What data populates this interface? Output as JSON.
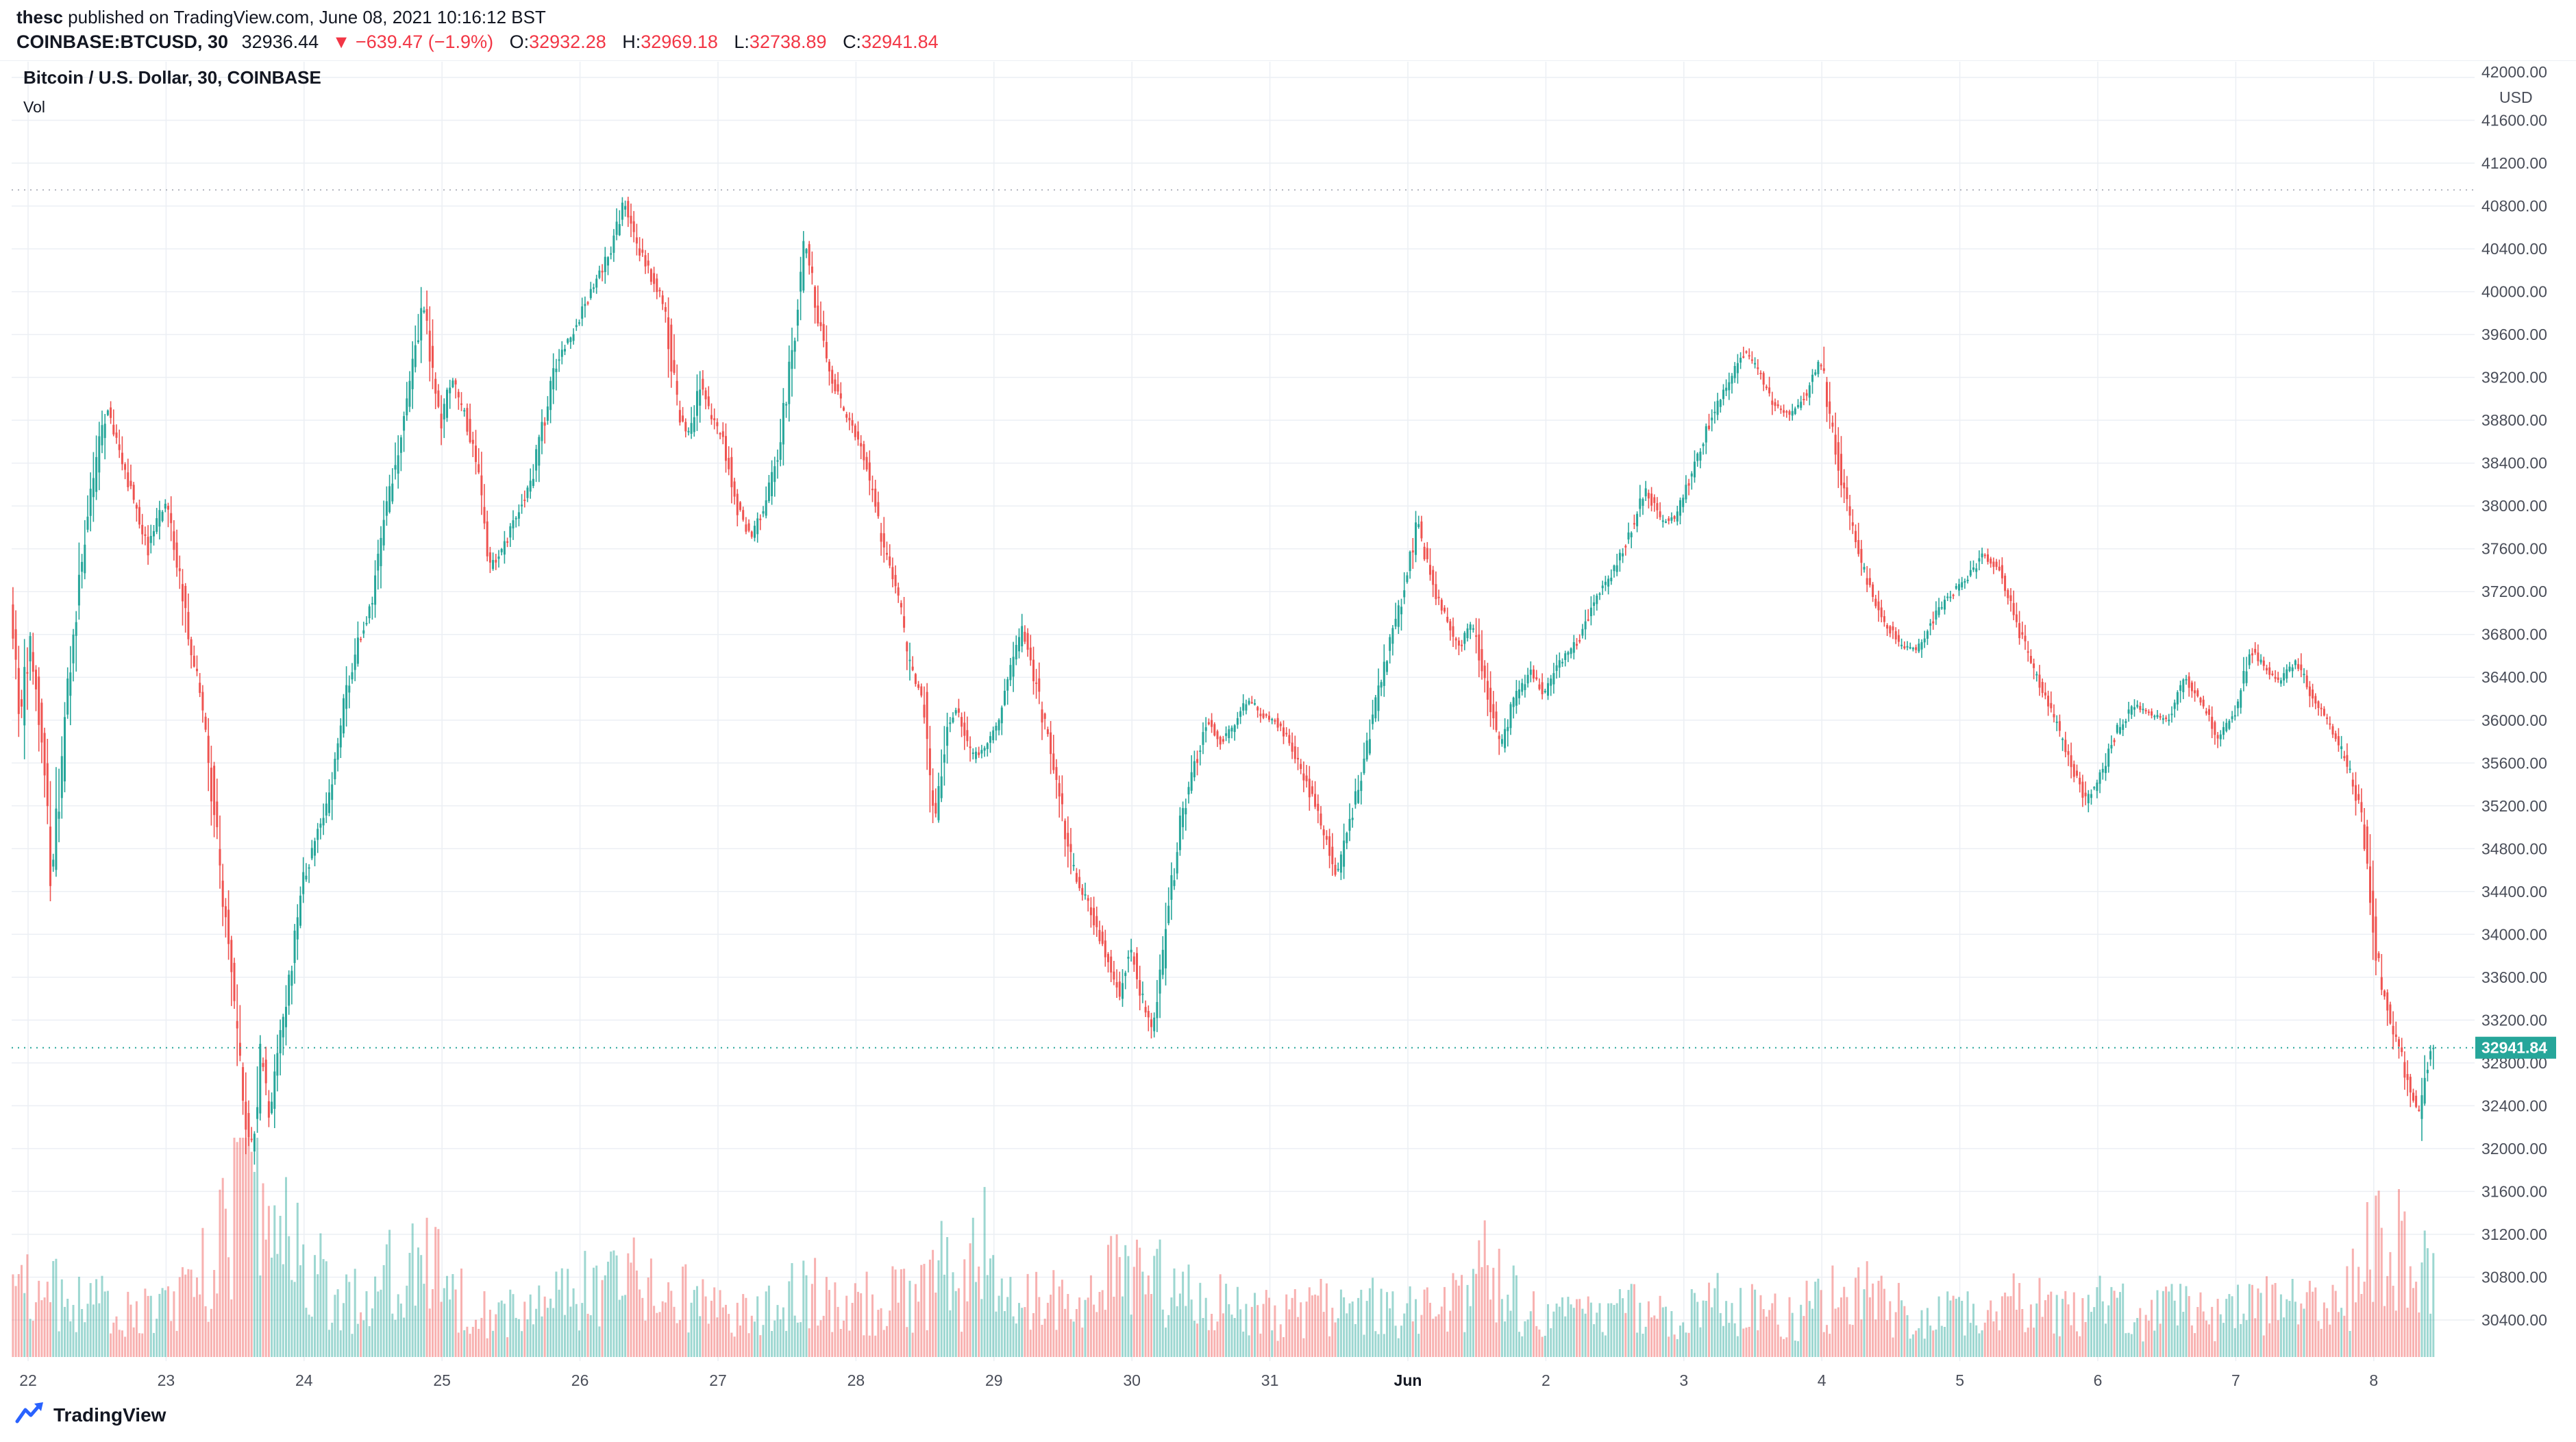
{
  "header": {
    "author": "thesc",
    "published": " published on TradingView.com, June 08, 2021 10:16:12 BST",
    "symbol_title": "COINBASE:BTCUSD, 30",
    "last": "32936.44",
    "change": "▼ −639.47 (−1.9%)",
    "o_label": "O:",
    "o_value": "32932.28",
    "h_label": "H:",
    "h_value": "32969.18",
    "l_label": "L:",
    "l_value": "32738.89",
    "c_label": "C:",
    "c_value": "32941.84"
  },
  "legend": {
    "title": "Bitcoin / U.S. Dollar, 30, COINBASE",
    "vol_label": "Vol"
  },
  "footer": {
    "brand": "TradingView"
  },
  "chart_data": {
    "type": "candlestick",
    "symbol": "COINBASE:BTCUSD",
    "interval_minutes": 30,
    "title": "Bitcoin / U.S. Dollar, 30, COINBASE",
    "y_axis": {
      "min": 30400,
      "max": 42000,
      "step": 400,
      "decimals": 2,
      "currency": "USD"
    },
    "x_axis": {
      "labels": [
        "22",
        "23",
        "24",
        "25",
        "26",
        "27",
        "28",
        "29",
        "30",
        "31",
        "Jun",
        "2",
        "3",
        "4",
        "5",
        "6",
        "7",
        "8"
      ],
      "bold_index": 10
    },
    "grid": true,
    "legend_position": "top-left",
    "colors": {
      "up": "#26a69a",
      "down": "#ef5350",
      "vol_up": "rgba(38,166,154,0.45)",
      "vol_down": "rgba(239,83,80,0.45)",
      "grid": "#eceff4",
      "axis_text": "#4a4e59",
      "price_label_bg": "#26a69a"
    },
    "last_price_label": "32941.84",
    "price_line": 32941.84,
    "high_dotted_line": 40950,
    "last_bar": {
      "o": 32932.28,
      "h": 32969.18,
      "l": 32738.89,
      "c": 32941.84
    },
    "price_path": [
      [
        -0.12,
        37000
      ],
      [
        -0.04,
        36000
      ],
      [
        0.02,
        36800
      ],
      [
        0.1,
        35900
      ],
      [
        0.18,
        34500
      ],
      [
        0.28,
        36000
      ],
      [
        0.38,
        37300
      ],
      [
        0.48,
        38200
      ],
      [
        0.58,
        38950
      ],
      [
        0.68,
        38500
      ],
      [
        0.78,
        38000
      ],
      [
        0.88,
        37600
      ],
      [
        1.0,
        38050
      ],
      [
        1.1,
        37400
      ],
      [
        1.2,
        36600
      ],
      [
        1.3,
        35900
      ],
      [
        1.4,
        34600
      ],
      [
        1.5,
        33400
      ],
      [
        1.58,
        32300
      ],
      [
        1.64,
        31980
      ],
      [
        1.7,
        32900
      ],
      [
        1.76,
        32250
      ],
      [
        1.84,
        33000
      ],
      [
        1.93,
        33800
      ],
      [
        2.0,
        34450
      ],
      [
        2.1,
        34900
      ],
      [
        2.2,
        35300
      ],
      [
        2.3,
        36200
      ],
      [
        2.4,
        36700
      ],
      [
        2.5,
        37100
      ],
      [
        2.6,
        37900
      ],
      [
        2.7,
        38600
      ],
      [
        2.8,
        39300
      ],
      [
        2.87,
        39900
      ],
      [
        2.94,
        39300
      ],
      [
        3.0,
        38750
      ],
      [
        3.08,
        39200
      ],
      [
        3.16,
        38900
      ],
      [
        3.25,
        38500
      ],
      [
        3.35,
        37400
      ],
      [
        3.45,
        37600
      ],
      [
        3.55,
        37900
      ],
      [
        3.65,
        38200
      ],
      [
        3.75,
        38800
      ],
      [
        3.85,
        39400
      ],
      [
        3.95,
        39600
      ],
      [
        4.05,
        39900
      ],
      [
        4.15,
        40150
      ],
      [
        4.25,
        40450
      ],
      [
        4.33,
        40850
      ],
      [
        4.42,
        40450
      ],
      [
        4.52,
        40150
      ],
      [
        4.62,
        39900
      ],
      [
        4.72,
        38900
      ],
      [
        4.8,
        38650
      ],
      [
        4.88,
        39150
      ],
      [
        4.95,
        38850
      ],
      [
        5.05,
        38600
      ],
      [
        5.15,
        38000
      ],
      [
        5.25,
        37700
      ],
      [
        5.35,
        38000
      ],
      [
        5.45,
        38500
      ],
      [
        5.55,
        39500
      ],
      [
        5.64,
        40450
      ],
      [
        5.72,
        39900
      ],
      [
        5.8,
        39300
      ],
      [
        5.9,
        38950
      ],
      [
        6.0,
        38700
      ],
      [
        6.1,
        38300
      ],
      [
        6.2,
        37650
      ],
      [
        6.3,
        37250
      ],
      [
        6.4,
        36500
      ],
      [
        6.5,
        36150
      ],
      [
        6.58,
        34980
      ],
      [
        6.66,
        35900
      ],
      [
        6.74,
        36100
      ],
      [
        6.85,
        35650
      ],
      [
        6.95,
        35750
      ],
      [
        7.05,
        36000
      ],
      [
        7.15,
        36550
      ],
      [
        7.22,
        36850
      ],
      [
        7.32,
        36300
      ],
      [
        7.45,
        35500
      ],
      [
        7.58,
        34600
      ],
      [
        7.7,
        34250
      ],
      [
        7.82,
        33800
      ],
      [
        7.92,
        33450
      ],
      [
        8.0,
        33900
      ],
      [
        8.08,
        33400
      ],
      [
        8.16,
        33100
      ],
      [
        8.25,
        33900
      ],
      [
        8.35,
        35000
      ],
      [
        8.45,
        35500
      ],
      [
        8.55,
        36000
      ],
      [
        8.65,
        35800
      ],
      [
        8.75,
        35950
      ],
      [
        8.85,
        36200
      ],
      [
        8.95,
        36050
      ],
      [
        9.05,
        36000
      ],
      [
        9.15,
        35800
      ],
      [
        9.28,
        35400
      ],
      [
        9.4,
        34950
      ],
      [
        9.5,
        34550
      ],
      [
        9.62,
        35200
      ],
      [
        9.75,
        36000
      ],
      [
        9.88,
        36700
      ],
      [
        9.98,
        37200
      ],
      [
        10.08,
        37850
      ],
      [
        10.18,
        37300
      ],
      [
        10.28,
        36950
      ],
      [
        10.38,
        36700
      ],
      [
        10.48,
        36900
      ],
      [
        10.58,
        36300
      ],
      [
        10.68,
        35750
      ],
      [
        10.78,
        36200
      ],
      [
        10.9,
        36450
      ],
      [
        11.0,
        36250
      ],
      [
        11.12,
        36550
      ],
      [
        11.25,
        36750
      ],
      [
        11.38,
        37150
      ],
      [
        11.5,
        37400
      ],
      [
        11.62,
        37750
      ],
      [
        11.73,
        38150
      ],
      [
        11.85,
        37850
      ],
      [
        11.95,
        37900
      ],
      [
        12.08,
        38350
      ],
      [
        12.2,
        38800
      ],
      [
        12.33,
        39150
      ],
      [
        12.45,
        39450
      ],
      [
        12.55,
        39250
      ],
      [
        12.65,
        38950
      ],
      [
        12.78,
        38850
      ],
      [
        12.9,
        39050
      ],
      [
        13.0,
        39350
      ],
      [
        13.1,
        38600
      ],
      [
        13.2,
        37950
      ],
      [
        13.32,
        37350
      ],
      [
        13.45,
        36950
      ],
      [
        13.58,
        36700
      ],
      [
        13.7,
        36650
      ],
      [
        13.82,
        36950
      ],
      [
        13.92,
        37150
      ],
      [
        14.05,
        37300
      ],
      [
        14.18,
        37550
      ],
      [
        14.3,
        37400
      ],
      [
        14.42,
        36900
      ],
      [
        14.55,
        36450
      ],
      [
        14.68,
        36050
      ],
      [
        14.8,
        35650
      ],
      [
        14.92,
        35250
      ],
      [
        15.02,
        35450
      ],
      [
        15.15,
        35900
      ],
      [
        15.28,
        36150
      ],
      [
        15.4,
        36050
      ],
      [
        15.52,
        36000
      ],
      [
        15.64,
        36400
      ],
      [
        15.76,
        36150
      ],
      [
        15.88,
        35850
      ],
      [
        16.0,
        36050
      ],
      [
        16.12,
        36650
      ],
      [
        16.22,
        36500
      ],
      [
        16.32,
        36350
      ],
      [
        16.45,
        36550
      ],
      [
        16.55,
        36250
      ],
      [
        16.65,
        36050
      ],
      [
        16.75,
        35800
      ],
      [
        16.85,
        35450
      ],
      [
        16.93,
        35050
      ],
      [
        17.0,
        34100
      ],
      [
        17.06,
        33550
      ],
      [
        17.12,
        33250
      ],
      [
        17.2,
        32900
      ],
      [
        17.27,
        32550
      ],
      [
        17.33,
        32300
      ],
      [
        17.4,
        32800
      ],
      [
        17.45,
        32941.84
      ]
    ],
    "volume_path": [
      [
        -0.12,
        0.3
      ],
      [
        0,
        0.4
      ],
      [
        0.3,
        0.28
      ],
      [
        0.6,
        0.25
      ],
      [
        0.9,
        0.22
      ],
      [
        1.2,
        0.35
      ],
      [
        1.35,
        0.5
      ],
      [
        1.5,
        0.85
      ],
      [
        1.62,
        1.0
      ],
      [
        1.72,
        0.8
      ],
      [
        1.85,
        0.6
      ],
      [
        2,
        0.5
      ],
      [
        2.2,
        0.32
      ],
      [
        2.45,
        0.28
      ],
      [
        2.6,
        0.5
      ],
      [
        2.75,
        0.45
      ],
      [
        2.9,
        0.5
      ],
      [
        3.05,
        0.35
      ],
      [
        3.3,
        0.25
      ],
      [
        3.6,
        0.22
      ],
      [
        3.9,
        0.3
      ],
      [
        4.1,
        0.38
      ],
      [
        4.3,
        0.42
      ],
      [
        4.5,
        0.32
      ],
      [
        4.7,
        0.3
      ],
      [
        4.9,
        0.28
      ],
      [
        5.1,
        0.25
      ],
      [
        5.3,
        0.2
      ],
      [
        5.55,
        0.32
      ],
      [
        5.7,
        0.35
      ],
      [
        5.9,
        0.25
      ],
      [
        6.1,
        0.28
      ],
      [
        6.3,
        0.3
      ],
      [
        6.5,
        0.35
      ],
      [
        6.6,
        0.45
      ],
      [
        6.75,
        0.3
      ],
      [
        6.9,
        0.65
      ],
      [
        7.0,
        0.3
      ],
      [
        7.2,
        0.26
      ],
      [
        7.45,
        0.28
      ],
      [
        7.6,
        0.35
      ],
      [
        7.8,
        0.38
      ],
      [
        8.0,
        0.45
      ],
      [
        8.15,
        0.42
      ],
      [
        8.3,
        0.35
      ],
      [
        8.5,
        0.3
      ],
      [
        8.7,
        0.24
      ],
      [
        8.9,
        0.22
      ],
      [
        9.1,
        0.2
      ],
      [
        9.3,
        0.24
      ],
      [
        9.5,
        0.28
      ],
      [
        9.7,
        0.26
      ],
      [
        9.9,
        0.24
      ],
      [
        10.1,
        0.22
      ],
      [
        10.4,
        0.3
      ],
      [
        10.6,
        0.48
      ],
      [
        10.8,
        0.24
      ],
      [
        11.0,
        0.18
      ],
      [
        11.3,
        0.2
      ],
      [
        11.6,
        0.24
      ],
      [
        11.9,
        0.2
      ],
      [
        12.2,
        0.28
      ],
      [
        12.5,
        0.24
      ],
      [
        12.8,
        0.2
      ],
      [
        13.0,
        0.3
      ],
      [
        13.2,
        0.34
      ],
      [
        13.5,
        0.24
      ],
      [
        13.8,
        0.2
      ],
      [
        14.1,
        0.24
      ],
      [
        14.4,
        0.28
      ],
      [
        14.7,
        0.24
      ],
      [
        15.0,
        0.28
      ],
      [
        15.3,
        0.2
      ],
      [
        15.6,
        0.24
      ],
      [
        15.9,
        0.2
      ],
      [
        16.2,
        0.28
      ],
      [
        16.5,
        0.24
      ],
      [
        16.8,
        0.3
      ],
      [
        16.95,
        0.5
      ],
      [
        17.05,
        0.6
      ],
      [
        17.15,
        0.55
      ],
      [
        17.25,
        0.5
      ],
      [
        17.35,
        0.45
      ],
      [
        17.45,
        0.4
      ]
    ]
  }
}
